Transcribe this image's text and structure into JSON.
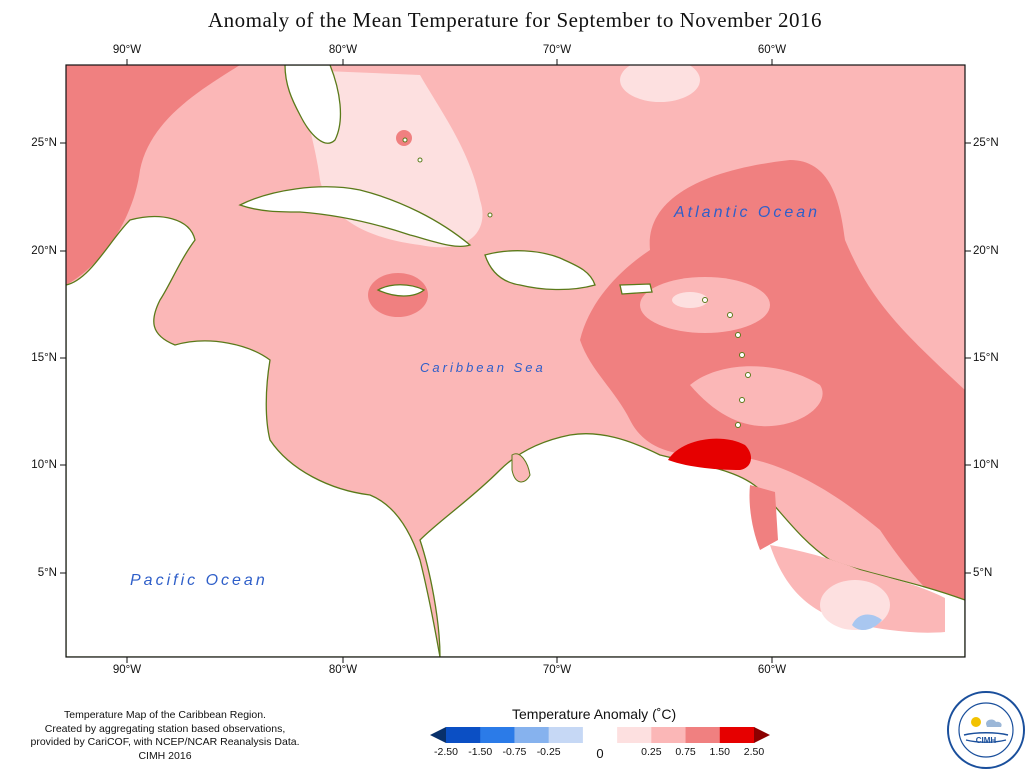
{
  "title": "Anomaly of the Mean Temperature for September to November 2016",
  "axes": {
    "lon_ticks": [
      "90°W",
      "80°W",
      "70°W",
      "60°W"
    ],
    "lat_ticks": [
      "25°N",
      "20°N",
      "15°N",
      "10°N",
      "5°N"
    ]
  },
  "ocean_labels": {
    "atlantic": "Atlantic Ocean",
    "caribbean": "Caribbean Sea",
    "pacific": "Pacific Ocean"
  },
  "credit": {
    "line1": "Temperature Map of the Caribbean Region.",
    "line2": "Created by aggregating station based observations,",
    "line3": "provided by CariCOF, with NCEP/NCAR Reanalysis Data.",
    "line4": "CIMH 2016"
  },
  "legend": {
    "title": "Temperature Anomaly (˚C)",
    "labels": [
      "-2.50",
      "-1.50",
      "-0.75",
      "-0.25",
      "0",
      "0.25",
      "0.75",
      "1.50",
      "2.50"
    ],
    "colors": [
      "#08306b",
      "#0b4fc4",
      "#2b7be8",
      "#86b2ee",
      "#c6d8f5",
      "#ffffff",
      "#fde0e0",
      "#fbb7b7",
      "#f08080",
      "#e60000",
      "#8b0000"
    ]
  },
  "logo": {
    "text": "CIMH",
    "ring_text": "Caribbean Institute for Meteorology and Hydrology"
  },
  "colors": {
    "coast": "#5a7a1a",
    "anomaly_0_025": "#fde0e0",
    "anomaly_025_075": "#fbb7b7",
    "anomaly_075_150": "#f08080",
    "anomaly_150_250": "#e60000",
    "anomaly_neg_025": "#a9c7f0"
  }
}
